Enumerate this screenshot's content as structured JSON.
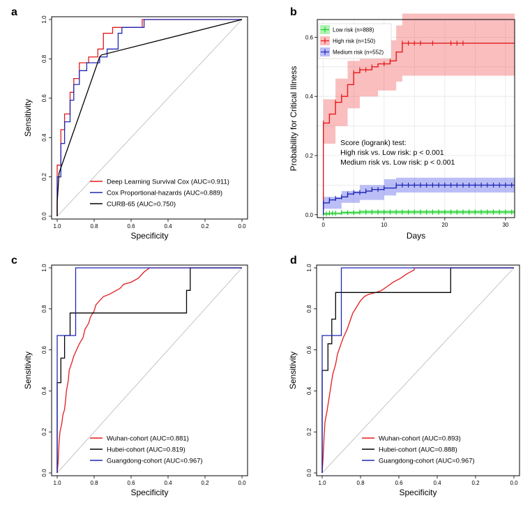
{
  "chart_data": [
    {
      "panel": "a",
      "type": "line",
      "xlabel": "Specificity",
      "ylabel": "Sensitivity",
      "xlim": [
        1.0,
        0.0
      ],
      "ylim": [
        0.0,
        1.0
      ],
      "xticks": [
        "1.0",
        "0.8",
        "0.6",
        "0.4",
        "0.2",
        "0.0"
      ],
      "yticks": [
        "0.0",
        "0.2",
        "0.4",
        "0.6",
        "0.8",
        "1.0"
      ],
      "legend_position": "bottom-right",
      "series": [
        {
          "name": "Deep Learning Survival Cox (AUC=0.911)",
          "color": "#e31a1c",
          "points": [
            [
              1.0,
              0.0
            ],
            [
              1.0,
              0.26
            ],
            [
              0.98,
              0.26
            ],
            [
              0.98,
              0.44
            ],
            [
              0.96,
              0.44
            ],
            [
              0.96,
              0.52
            ],
            [
              0.93,
              0.52
            ],
            [
              0.93,
              0.63
            ],
            [
              0.91,
              0.63
            ],
            [
              0.91,
              0.7
            ],
            [
              0.88,
              0.7
            ],
            [
              0.88,
              0.78
            ],
            [
              0.83,
              0.78
            ],
            [
              0.83,
              0.81
            ],
            [
              0.78,
              0.81
            ],
            [
              0.78,
              0.85
            ],
            [
              0.75,
              0.85
            ],
            [
              0.75,
              0.93
            ],
            [
              0.7,
              0.93
            ],
            [
              0.7,
              0.96
            ],
            [
              0.54,
              0.96
            ],
            [
              0.54,
              1.0
            ],
            [
              0.0,
              1.0
            ]
          ]
        },
        {
          "name": "Cox Proportional-hazards (AUC=0.889)",
          "color": "#1f28b4",
          "points": [
            [
              1.0,
              0.0
            ],
            [
              1.0,
              0.2
            ],
            [
              0.98,
              0.2
            ],
            [
              0.98,
              0.37
            ],
            [
              0.96,
              0.37
            ],
            [
              0.96,
              0.48
            ],
            [
              0.93,
              0.48
            ],
            [
              0.93,
              0.59
            ],
            [
              0.91,
              0.59
            ],
            [
              0.91,
              0.67
            ],
            [
              0.88,
              0.67
            ],
            [
              0.88,
              0.74
            ],
            [
              0.84,
              0.74
            ],
            [
              0.84,
              0.78
            ],
            [
              0.77,
              0.78
            ],
            [
              0.77,
              0.81
            ],
            [
              0.73,
              0.81
            ],
            [
              0.73,
              0.85
            ],
            [
              0.67,
              0.85
            ],
            [
              0.67,
              0.93
            ],
            [
              0.65,
              0.93
            ],
            [
              0.65,
              0.96
            ],
            [
              0.53,
              0.96
            ],
            [
              0.53,
              1.0
            ],
            [
              0.0,
              1.0
            ]
          ]
        },
        {
          "name": "CURB-65 (AUC=0.750)",
          "color": "#000000",
          "points": [
            [
              1.0,
              0.0
            ],
            [
              1.0,
              0.07
            ],
            [
              0.99,
              0.22
            ],
            [
              0.77,
              0.81
            ],
            [
              0.76,
              0.82
            ],
            [
              0.0,
              1.0
            ]
          ]
        }
      ]
    },
    {
      "panel": "b",
      "type": "line",
      "xlabel": "Days",
      "ylabel": "Probability for Critical Illness",
      "xlim": [
        -1,
        31.5
      ],
      "ylim": [
        -0.01,
        0.66
      ],
      "xticks": [
        "0",
        "10",
        "20",
        "30"
      ],
      "yticks": [
        "0.0",
        "0.2",
        "0.4",
        "0.6"
      ],
      "grid": true,
      "legend_position": "top-left",
      "annotation": [
        "Score (logrank) test:",
        "High risk vs. Low risk: p < 0.001",
        "Medium risk vs. Low risk: p < 0.001"
      ],
      "series": [
        {
          "name": "Low risk (n=888)",
          "color": "#1fcc2e",
          "steps": [
            [
              0,
              0.003
            ],
            [
              1,
              0.005
            ],
            [
              3,
              0.007
            ],
            [
              6,
              0.009
            ],
            [
              31.5,
              0.009
            ]
          ],
          "band": [
            [
              0,
              0.0,
              0.006
            ],
            [
              3,
              0.002,
              0.012
            ],
            [
              6,
              0.003,
              0.015
            ],
            [
              31.5,
              0.003,
              0.015
            ]
          ],
          "censor_x": [
            0,
            0.5,
            1,
            1.5,
            2,
            3,
            4,
            5,
            6,
            7,
            8,
            9,
            10,
            11,
            12,
            13,
            14,
            15,
            16,
            17,
            18,
            19,
            20,
            21,
            22,
            23,
            24,
            25,
            26,
            27,
            28,
            29,
            30,
            31
          ]
        },
        {
          "name": "High risk (n=150)",
          "color": "#e31a1c",
          "steps": [
            [
              0,
              0.31
            ],
            [
              1,
              0.34
            ],
            [
              2,
              0.38
            ],
            [
              3,
              0.4
            ],
            [
              4,
              0.44
            ],
            [
              5,
              0.48
            ],
            [
              6,
              0.49
            ],
            [
              8,
              0.5
            ],
            [
              9,
              0.51
            ],
            [
              11,
              0.52
            ],
            [
              12,
              0.55
            ],
            [
              13,
              0.58
            ],
            [
              31.5,
              0.58
            ]
          ],
          "band": [
            [
              0,
              0.24,
              0.39
            ],
            [
              2,
              0.3,
              0.46
            ],
            [
              4,
              0.36,
              0.52
            ],
            [
              6,
              0.4,
              0.57
            ],
            [
              9,
              0.42,
              0.59
            ],
            [
              12,
              0.45,
              0.64
            ],
            [
              13,
              0.47,
              0.68
            ],
            [
              31.5,
              0.47,
              0.68
            ]
          ],
          "censor_x": [
            0,
            2,
            3,
            5,
            6,
            7,
            8,
            10,
            11,
            13,
            14,
            15,
            16,
            18,
            21,
            22,
            23
          ]
        },
        {
          "name": "Medium risk (n=552)",
          "color": "#1f28b4",
          "steps": [
            [
              0,
              0.04
            ],
            [
              1,
              0.05
            ],
            [
              2,
              0.055
            ],
            [
              3,
              0.06
            ],
            [
              4,
              0.07
            ],
            [
              5,
              0.075
            ],
            [
              7,
              0.08
            ],
            [
              8,
              0.085
            ],
            [
              10,
              0.09
            ],
            [
              12,
              0.1
            ],
            [
              31.5,
              0.1
            ]
          ],
          "band": [
            [
              0,
              0.02,
              0.06
            ],
            [
              3,
              0.04,
              0.08
            ],
            [
              6,
              0.05,
              0.1
            ],
            [
              10,
              0.065,
              0.12
            ],
            [
              12,
              0.075,
              0.125
            ],
            [
              31.5,
              0.075,
              0.125
            ]
          ],
          "censor_x": [
            0,
            1,
            2,
            3,
            4,
            5,
            6,
            7,
            8,
            9,
            10,
            12,
            13,
            14,
            15,
            16,
            17,
            18,
            19,
            20,
            21,
            22,
            23,
            24,
            25,
            26,
            27,
            28,
            29,
            30,
            31
          ]
        }
      ]
    },
    {
      "panel": "c",
      "type": "line",
      "xlabel": "Specificity",
      "ylabel": "Sensitivity",
      "xlim": [
        1.0,
        0.0
      ],
      "ylim": [
        0.0,
        1.0
      ],
      "xticks": [
        "1.0",
        "0.8",
        "0.6",
        "0.4",
        "0.2",
        "0.0"
      ],
      "yticks": [
        "0.0",
        "0.2",
        "0.4",
        "0.6",
        "0.8",
        "1.0"
      ],
      "legend_position": "bottom-right",
      "series": [
        {
          "name": "Wuhan-cohort (AUC=0.881)",
          "color": "#e31a1c",
          "points": [
            [
              1.0,
              0.0
            ],
            [
              0.995,
              0.05
            ],
            [
              0.99,
              0.15
            ],
            [
              0.985,
              0.2
            ],
            [
              0.975,
              0.24
            ],
            [
              0.97,
              0.28
            ],
            [
              0.96,
              0.31
            ],
            [
              0.955,
              0.35
            ],
            [
              0.95,
              0.4
            ],
            [
              0.94,
              0.45
            ],
            [
              0.935,
              0.5
            ],
            [
              0.92,
              0.54
            ],
            [
              0.91,
              0.57
            ],
            [
              0.895,
              0.6
            ],
            [
              0.88,
              0.63
            ],
            [
              0.86,
              0.66
            ],
            [
              0.85,
              0.7
            ],
            [
              0.83,
              0.73
            ],
            [
              0.82,
              0.76
            ],
            [
              0.8,
              0.79
            ],
            [
              0.79,
              0.82
            ],
            [
              0.77,
              0.84
            ],
            [
              0.75,
              0.86
            ],
            [
              0.72,
              0.87
            ],
            [
              0.7,
              0.88
            ],
            [
              0.66,
              0.9
            ],
            [
              0.64,
              0.92
            ],
            [
              0.6,
              0.93
            ],
            [
              0.56,
              0.95
            ],
            [
              0.53,
              0.98
            ],
            [
              0.5,
              1.0
            ],
            [
              0.0,
              1.0
            ]
          ]
        },
        {
          "name": "Hubei-cohort (AUC=0.819)",
          "color": "#000000",
          "points": [
            [
              1.0,
              0.0
            ],
            [
              1.0,
              0.44
            ],
            [
              0.98,
              0.44
            ],
            [
              0.98,
              0.56
            ],
            [
              0.96,
              0.56
            ],
            [
              0.96,
              0.67
            ],
            [
              0.93,
              0.67
            ],
            [
              0.93,
              0.78
            ],
            [
              0.3,
              0.78
            ],
            [
              0.3,
              0.89
            ],
            [
              0.28,
              0.89
            ],
            [
              0.28,
              1.0
            ],
            [
              0.0,
              1.0
            ]
          ]
        },
        {
          "name": "Guangdong-cohort (AUC=0.967)",
          "color": "#1f28b4",
          "points": [
            [
              1.0,
              0.0
            ],
            [
              1.0,
              0.67
            ],
            [
              0.9,
              0.67
            ],
            [
              0.9,
              1.0
            ],
            [
              0.0,
              1.0
            ]
          ]
        }
      ]
    },
    {
      "panel": "d",
      "type": "line",
      "xlabel": "Specificity",
      "ylabel": "Sensitivity",
      "xlim": [
        1.0,
        0.0
      ],
      "ylim": [
        0.0,
        1.0
      ],
      "xticks": [
        "1.0",
        "0.8",
        "0.6",
        "0.4",
        "0.2",
        "0.0"
      ],
      "yticks": [
        "0.0",
        "0.2",
        "0.4",
        "0.6",
        "0.8",
        "1.0"
      ],
      "legend_position": "bottom-right",
      "series": [
        {
          "name": "Wuhan-cohort (AUC=0.893)",
          "color": "#e31a1c",
          "points": [
            [
              1.0,
              0.0
            ],
            [
              0.995,
              0.08
            ],
            [
              0.99,
              0.18
            ],
            [
              0.985,
              0.25
            ],
            [
              0.975,
              0.3
            ],
            [
              0.965,
              0.36
            ],
            [
              0.955,
              0.42
            ],
            [
              0.945,
              0.48
            ],
            [
              0.93,
              0.53
            ],
            [
              0.92,
              0.58
            ],
            [
              0.905,
              0.62
            ],
            [
              0.89,
              0.66
            ],
            [
              0.87,
              0.7
            ],
            [
              0.855,
              0.74
            ],
            [
              0.84,
              0.78
            ],
            [
              0.82,
              0.81
            ],
            [
              0.8,
              0.84
            ],
            [
              0.78,
              0.86
            ],
            [
              0.76,
              0.87
            ],
            [
              0.72,
              0.88
            ],
            [
              0.69,
              0.89
            ],
            [
              0.66,
              0.91
            ],
            [
              0.63,
              0.93
            ],
            [
              0.59,
              0.95
            ],
            [
              0.56,
              0.97
            ],
            [
              0.52,
              0.99
            ],
            [
              0.52,
              1.0
            ],
            [
              0.0,
              1.0
            ]
          ]
        },
        {
          "name": "Hubei-cohort (AUC=0.888)",
          "color": "#000000",
          "points": [
            [
              1.0,
              0.0
            ],
            [
              1.0,
              0.5
            ],
            [
              0.97,
              0.5
            ],
            [
              0.97,
              0.63
            ],
            [
              0.95,
              0.63
            ],
            [
              0.95,
              0.75
            ],
            [
              0.93,
              0.75
            ],
            [
              0.93,
              0.88
            ],
            [
              0.33,
              0.88
            ],
            [
              0.33,
              1.0
            ],
            [
              0.0,
              1.0
            ]
          ]
        },
        {
          "name": "Guangdong-cohort (AUC=0.967)",
          "color": "#1f28b4",
          "points": [
            [
              1.0,
              0.0
            ],
            [
              1.0,
              0.67
            ],
            [
              0.9,
              0.67
            ],
            [
              0.9,
              1.0
            ],
            [
              0.0,
              1.0
            ]
          ]
        }
      ]
    }
  ]
}
